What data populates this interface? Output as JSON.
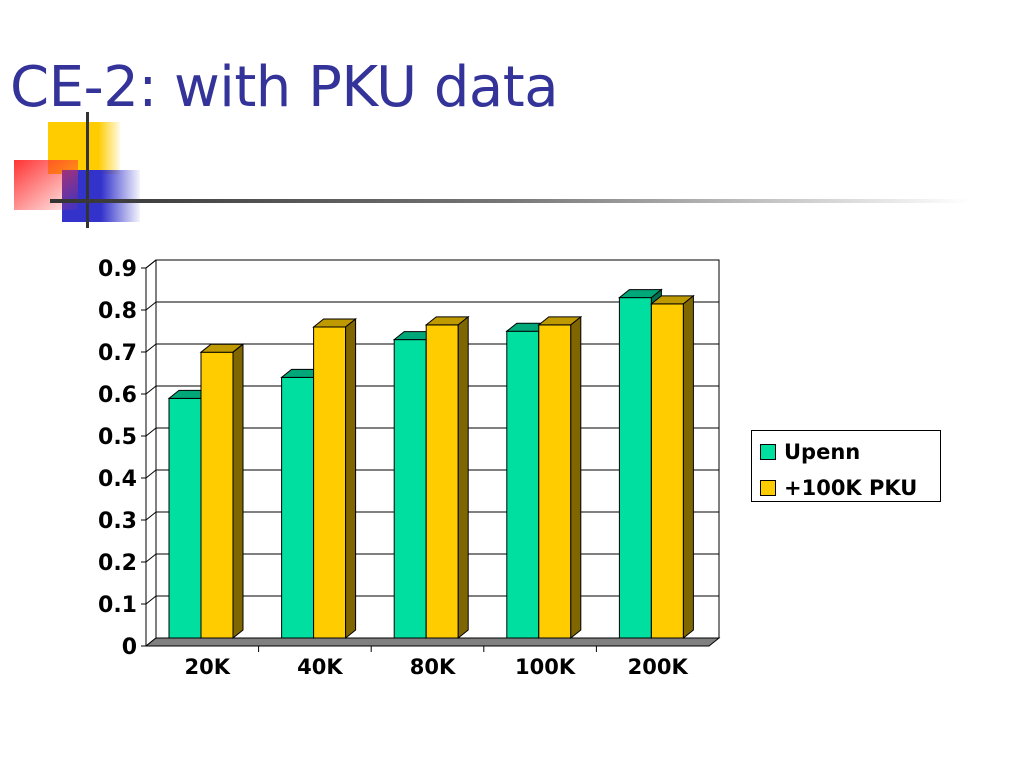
{
  "slide": {
    "title": "CE-2: with PKU data"
  },
  "colors": {
    "title": "#333399",
    "upenn": "#00DFA0",
    "pku": "#FFCC00"
  },
  "chart_data": {
    "type": "bar",
    "categories": [
      "20K",
      "40K",
      "80K",
      "100K",
      "200K"
    ],
    "series": [
      {
        "name": "Upenn",
        "values": [
          0.58,
          0.63,
          0.72,
          0.74,
          0.82
        ],
        "color": "#00DFA0"
      },
      {
        "name": "+100K PKU",
        "values": [
          0.69,
          0.75,
          0.755,
          0.755,
          0.805
        ],
        "color": "#FFCC00"
      }
    ],
    "ylim": [
      0,
      0.9
    ],
    "yticks": [
      "0",
      "0.1",
      "0.2",
      "0.3",
      "0.4",
      "0.5",
      "0.6",
      "0.7",
      "0.8",
      "0.9"
    ],
    "grid": true,
    "legend": "right",
    "style": "3d"
  }
}
